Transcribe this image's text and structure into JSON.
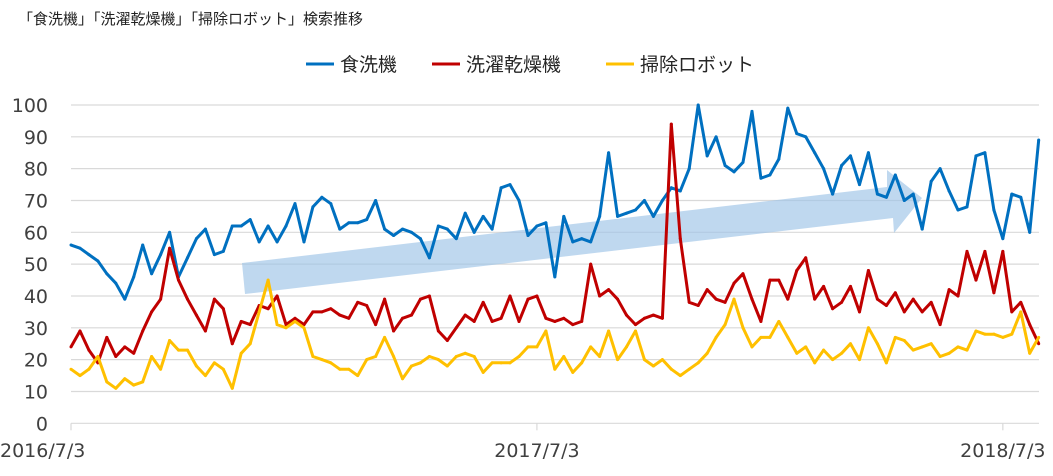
{
  "chart_data": {
    "type": "line",
    "title": "「食洗機」「洗濯乾燥機」「掃除ロボット」検索推移",
    "x_interval": "weekly",
    "x_tick_labels": [
      "2016/7/3",
      "2017/7/3",
      "2018/7/3"
    ],
    "x_tick_index": [
      0,
      52,
      104
    ],
    "ylim": [
      0,
      100
    ],
    "y_ticks": [
      0,
      10,
      20,
      30,
      40,
      50,
      60,
      70,
      80,
      90,
      100
    ],
    "grid": "horizontal",
    "legend_position": "top",
    "annotation": "upward trend arrow (translucent blue)",
    "series": [
      {
        "name": "食洗機",
        "color": "#0070c0",
        "values": [
          56,
          55,
          53,
          51,
          47,
          44,
          39,
          46,
          56,
          47,
          53,
          60,
          46,
          52,
          58,
          61,
          53,
          54,
          62,
          62,
          64,
          57,
          62,
          57,
          62,
          69,
          57,
          68,
          71,
          69,
          61,
          63,
          63,
          64,
          70,
          61,
          59,
          61,
          60,
          58,
          52,
          62,
          61,
          58,
          66,
          60,
          65,
          61,
          74,
          75,
          70,
          59,
          62,
          63,
          46,
          65,
          57,
          58,
          57,
          65,
          85,
          65,
          66,
          67,
          70,
          65,
          70,
          74,
          73,
          80,
          100,
          84,
          90,
          81,
          79,
          82,
          98,
          77,
          78,
          83,
          99,
          91,
          90,
          85,
          80,
          72,
          81,
          84,
          75,
          85,
          72,
          71,
          78,
          70,
          72,
          61,
          76,
          80,
          73,
          67,
          68,
          84,
          85,
          67,
          58,
          72,
          71,
          60,
          89
        ]
      },
      {
        "name": "洗濯乾燥機",
        "color": "#c00000",
        "values": [
          24,
          29,
          23,
          19,
          27,
          21,
          24,
          22,
          29,
          35,
          39,
          55,
          45,
          39,
          34,
          29,
          39,
          36,
          25,
          32,
          31,
          37,
          36,
          40,
          31,
          33,
          31,
          35,
          35,
          36,
          34,
          33,
          38,
          37,
          31,
          39,
          29,
          33,
          34,
          39,
          40,
          29,
          26,
          30,
          34,
          32,
          38,
          32,
          33,
          40,
          32,
          39,
          40,
          33,
          32,
          33,
          31,
          32,
          50,
          40,
          42,
          39,
          34,
          31,
          33,
          34,
          33,
          94,
          58,
          38,
          37,
          42,
          39,
          38,
          44,
          47,
          39,
          32,
          45,
          45,
          39,
          48,
          52,
          39,
          43,
          36,
          38,
          43,
          35,
          48,
          39,
          37,
          41,
          35,
          39,
          35,
          38,
          31,
          42,
          40,
          54,
          45,
          54,
          41,
          54,
          35,
          38,
          31,
          25
        ]
      },
      {
        "name": "掃除ロボット",
        "color": "#ffc000",
        "values": [
          17,
          15,
          17,
          21,
          13,
          11,
          14,
          12,
          13,
          21,
          17,
          26,
          23,
          23,
          18,
          15,
          19,
          17,
          11,
          22,
          25,
          35,
          45,
          31,
          30,
          32,
          30,
          21,
          20,
          19,
          17,
          17,
          15,
          20,
          21,
          27,
          21,
          14,
          18,
          19,
          21,
          20,
          18,
          21,
          22,
          21,
          16,
          19,
          19,
          19,
          21,
          24,
          24,
          29,
          17,
          21,
          16,
          19,
          24,
          21,
          29,
          20,
          24,
          29,
          20,
          18,
          20,
          17,
          15,
          17,
          19,
          22,
          27,
          31,
          39,
          30,
          24,
          27,
          27,
          32,
          27,
          22,
          24,
          19,
          23,
          20,
          22,
          25,
          20,
          30,
          25,
          19,
          27,
          26,
          23,
          24,
          25,
          21,
          22,
          24,
          23,
          29,
          28,
          28,
          27,
          28,
          35,
          22,
          27
        ]
      }
    ]
  }
}
